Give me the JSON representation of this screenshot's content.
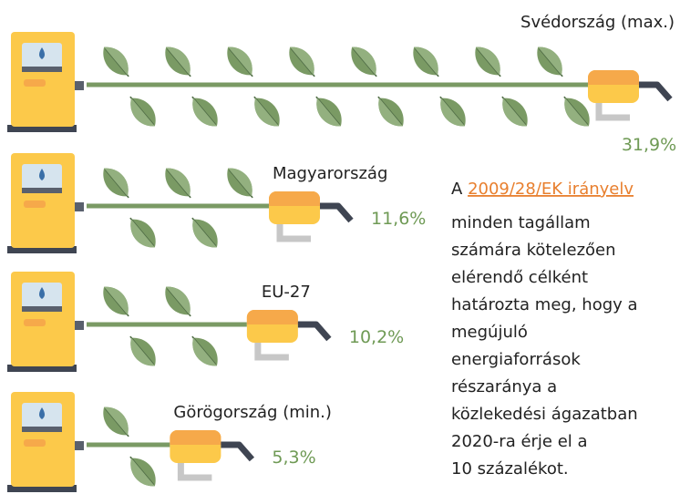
{
  "chart_data": {
    "type": "pictorial-bar",
    "categories": [
      "Svédország (max.)",
      "Magyarország",
      "EU-27",
      "Görögország (min.)"
    ],
    "values": [
      31.9,
      11.6,
      10.2,
      5.3
    ],
    "value_labels": [
      "31,9%",
      "11,6%",
      "10,2%",
      "5,3%"
    ],
    "color": "#7a9a64"
  },
  "note": {
    "prefix": "A",
    "link": "2009/28/EK irányelv",
    "lines": [
      "minden tagállam",
      "számára kötelezően",
      "elérendő célként",
      "határozta meg, hogy a",
      "megújuló",
      "energiaforrások",
      "részaránya a",
      "közlekedési ágazatban",
      "2020-ra érje el a",
      "10 százalékot."
    ]
  }
}
